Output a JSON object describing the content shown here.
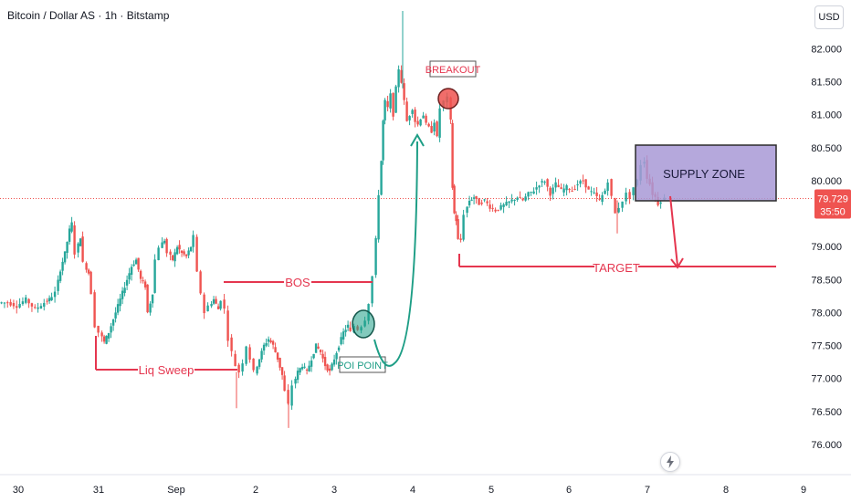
{
  "header": {
    "title": "Bitcoin / Dollar AS · 1h · Bitstamp",
    "currency_button": "USD"
  },
  "price_label": {
    "value": "79.729",
    "countdown": "35:50"
  },
  "colors": {
    "up": "#26a69a",
    "down": "#ef5350",
    "annot": "#e5364f",
    "teal": "#1e9e86",
    "zone": "#a899d6"
  },
  "chart_data": {
    "type": "candlestick",
    "title": "Bitcoin / Dollar AS · 1h · Bitstamp",
    "y_ticks": [
      "82.000",
      "81.500",
      "81.000",
      "80.500",
      "80.000",
      "79.000",
      "78.500",
      "78.000",
      "77.500",
      "77.000",
      "76.500",
      "76.000"
    ],
    "y_tick_values": [
      82000,
      81500,
      81000,
      80500,
      80000,
      79000,
      78500,
      78000,
      77500,
      77000,
      76500,
      76000
    ],
    "x_ticks": [
      "30",
      "31",
      "Sep",
      "2",
      "3",
      "4",
      "5",
      "6",
      "7",
      "8",
      "9"
    ],
    "ylim": [
      75750,
      82600
    ],
    "price_path": [
      [
        0,
        78150
      ],
      [
        10,
        78150
      ],
      [
        20,
        78100
      ],
      [
        30,
        78200
      ],
      [
        40,
        78050
      ],
      [
        50,
        78150
      ],
      [
        55,
        78200
      ],
      [
        62,
        78300
      ],
      [
        67,
        78650
      ],
      [
        72,
        78900
      ],
      [
        77,
        79250
      ],
      [
        80,
        79350
      ],
      [
        84,
        78900
      ],
      [
        89,
        79150
      ],
      [
        93,
        78750
      ],
      [
        98,
        78600
      ],
      [
        102,
        78300
      ],
      [
        106,
        77800
      ],
      [
        110,
        77700
      ],
      [
        115,
        77550
      ],
      [
        120,
        77700
      ],
      [
        125,
        77900
      ],
      [
        130,
        78100
      ],
      [
        135,
        78300
      ],
      [
        140,
        78500
      ],
      [
        145,
        78700
      ],
      [
        150,
        78800
      ],
      [
        155,
        78500
      ],
      [
        160,
        78400
      ],
      [
        163,
        78000
      ],
      [
        168,
        78300
      ],
      [
        172,
        78800
      ],
      [
        176,
        79000
      ],
      [
        181,
        79100
      ],
      [
        185,
        78900
      ],
      [
        190,
        78800
      ],
      [
        195,
        79000
      ],
      [
        200,
        78900
      ],
      [
        205,
        78850
      ],
      [
        210,
        79000
      ],
      [
        214,
        79150
      ],
      [
        218,
        78600
      ],
      [
        222,
        78300
      ],
      [
        226,
        78000
      ],
      [
        230,
        78100
      ],
      [
        235,
        78200
      ],
      [
        240,
        78050
      ],
      [
        244,
        78200
      ],
      [
        248,
        78050
      ],
      [
        252,
        77600
      ],
      [
        256,
        77400
      ],
      [
        260,
        77200
      ],
      [
        264,
        77100
      ],
      [
        268,
        77250
      ],
      [
        272,
        77500
      ],
      [
        276,
        77300
      ],
      [
        280,
        77100
      ],
      [
        285,
        77300
      ],
      [
        290,
        77500
      ],
      [
        295,
        77600
      ],
      [
        300,
        77500
      ],
      [
        305,
        77300
      ],
      [
        310,
        77050
      ],
      [
        314,
        76800
      ],
      [
        318,
        76600
      ],
      [
        322,
        76900
      ],
      [
        327,
        77100
      ],
      [
        332,
        77200
      ],
      [
        337,
        77100
      ],
      [
        342,
        77300
      ],
      [
        347,
        77500
      ],
      [
        352,
        77400
      ],
      [
        357,
        77200
      ],
      [
        362,
        77100
      ],
      [
        367,
        77300
      ],
      [
        372,
        77500
      ],
      [
        377,
        77700
      ],
      [
        382,
        77800
      ],
      [
        386,
        77700
      ],
      [
        390,
        77800
      ],
      [
        394,
        77750
      ],
      [
        398,
        77800
      ],
      [
        402,
        77900
      ],
      [
        406,
        78150
      ],
      [
        410,
        78550
      ],
      [
        413,
        79100
      ],
      [
        416,
        79800
      ],
      [
        418,
        80300
      ],
      [
        420,
        80900
      ],
      [
        423,
        81200
      ],
      [
        426,
        81100
      ],
      [
        429,
        81300
      ],
      [
        432,
        81000
      ],
      [
        435,
        81400
      ],
      [
        438,
        81700
      ],
      [
        441,
        81500
      ],
      [
        444,
        81200
      ],
      [
        447,
        80900
      ],
      [
        450,
        81000
      ],
      [
        453,
        81100
      ],
      [
        456,
        80900
      ],
      [
        459,
        80850
      ],
      [
        462,
        80950
      ],
      [
        465,
        81000
      ],
      [
        468,
        80850
      ],
      [
        471,
        80800
      ],
      [
        474,
        80750
      ],
      [
        477,
        80900
      ],
      [
        480,
        80650
      ],
      [
        484,
        81100
      ],
      [
        488,
        81200
      ],
      [
        492,
        81250
      ],
      [
        494,
        80900
      ],
      [
        496,
        79900
      ],
      [
        498,
        79500
      ],
      [
        500,
        79400
      ],
      [
        503,
        79100
      ],
      [
        506,
        79100
      ],
      [
        510,
        79500
      ],
      [
        515,
        79700
      ],
      [
        520,
        79750
      ],
      [
        526,
        79650
      ],
      [
        532,
        79700
      ],
      [
        538,
        79600
      ],
      [
        544,
        79550
      ],
      [
        550,
        79600
      ],
      [
        556,
        79650
      ],
      [
        562,
        79700
      ],
      [
        568,
        79750
      ],
      [
        574,
        79700
      ],
      [
        580,
        79800
      ],
      [
        586,
        79850
      ],
      [
        592,
        79950
      ],
      [
        598,
        80000
      ],
      [
        604,
        79800
      ],
      [
        610,
        79950
      ],
      [
        616,
        79850
      ],
      [
        622,
        79900
      ],
      [
        628,
        79850
      ],
      [
        634,
        79950
      ],
      [
        640,
        80000
      ],
      [
        646,
        79850
      ],
      [
        652,
        79800
      ],
      [
        658,
        79700
      ],
      [
        664,
        79850
      ],
      [
        668,
        80000
      ],
      [
        672,
        79750
      ],
      [
        676,
        79500
      ],
      [
        680,
        79600
      ],
      [
        684,
        79700
      ],
      [
        688,
        79800
      ],
      [
        692,
        79750
      ],
      [
        696,
        79900
      ],
      [
        700,
        80000
      ],
      [
        704,
        80250
      ],
      [
        707,
        80300
      ],
      [
        710,
        80050
      ],
      [
        713,
        79950
      ],
      [
        716,
        79800
      ],
      [
        719,
        79750
      ],
      [
        722,
        79650
      ],
      [
        726,
        79700
      ],
      [
        730,
        79729
      ]
    ],
    "annotations": {
      "liq_sweep": "Liq Sweep",
      "bos": "BOS",
      "poi": "POI POINT",
      "breakout": "BREAKOUT",
      "supply_zone": "SUPPLY ZONE",
      "target": "TARGET"
    }
  }
}
